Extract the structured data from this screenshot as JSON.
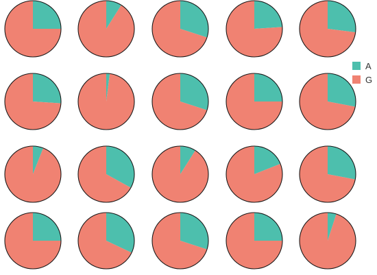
{
  "chart_data": {
    "type": "pie",
    "layout": {
      "rows": 4,
      "cols": 5
    },
    "legend": {
      "placement": "right",
      "entries": [
        {
          "label": "A",
          "color": "#4dbfad"
        },
        {
          "label": "G",
          "color": "#f08272"
        }
      ]
    },
    "slice_order": [
      "A",
      "G"
    ],
    "start_angle": "12 o'clock",
    "direction": "clockwise",
    "pies": [
      {
        "A": 0.25,
        "G": 0.75
      },
      {
        "A": 0.09,
        "G": 0.91
      },
      {
        "A": 0.3,
        "G": 0.7
      },
      {
        "A": 0.24,
        "G": 0.76
      },
      {
        "A": 0.27,
        "G": 0.73
      },
      {
        "A": 0.26,
        "G": 0.74
      },
      {
        "A": 0.02,
        "G": 0.98
      },
      {
        "A": 0.3,
        "G": 0.7
      },
      {
        "A": 0.25,
        "G": 0.75
      },
      {
        "A": 0.28,
        "G": 0.72
      },
      {
        "A": 0.06,
        "G": 0.94
      },
      {
        "A": 0.33,
        "G": 0.67
      },
      {
        "A": 0.09,
        "G": 0.91
      },
      {
        "A": 0.19,
        "G": 0.81
      },
      {
        "A": 0.28,
        "G": 0.72
      },
      {
        "A": 0.25,
        "G": 0.75
      },
      {
        "A": 0.32,
        "G": 0.68
      },
      {
        "A": 0.3,
        "G": 0.7
      },
      {
        "A": 0.25,
        "G": 0.75
      },
      {
        "A": 0.05,
        "G": 0.95
      }
    ]
  }
}
